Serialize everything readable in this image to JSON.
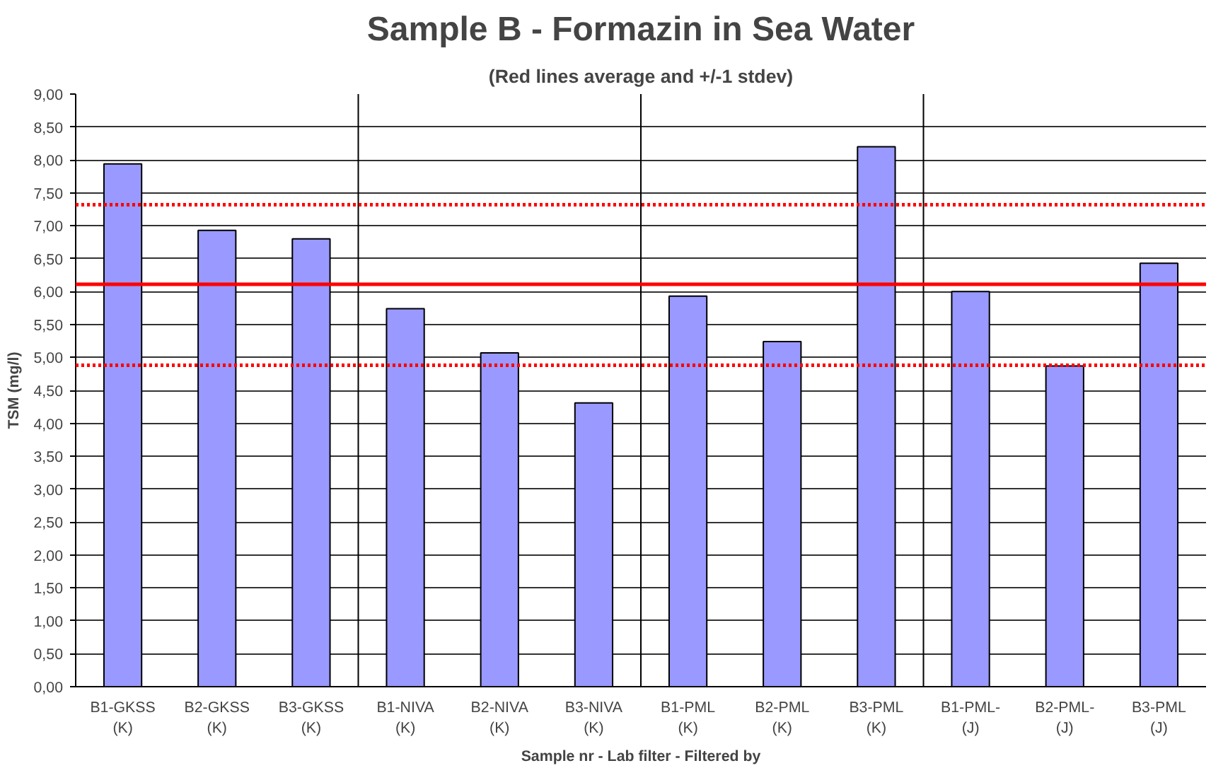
{
  "chart_data": {
    "type": "bar",
    "title": "Sample B - Formazin in Sea Water",
    "subtitle": "(Red lines average and +/-1 stdev)",
    "xlabel": "Sample nr - Lab filter - Filtered by",
    "ylabel": "TSM (mg/l)",
    "categories": [
      "B1-GKSS\n(K)",
      "B2-GKSS\n(K)",
      "B3-GKSS\n(K)",
      "B1-NIVA\n(K)",
      "B2-NIVA\n(K)",
      "B3-NIVA\n(K)",
      "B1-PML\n(K)",
      "B2-PML\n(K)",
      "B3-PML\n(K)",
      "B1-PML-\n(J)",
      "B2-PML-\n(J)",
      "B3-PML\n(J)"
    ],
    "values": [
      7.94,
      6.93,
      6.8,
      5.74,
      5.07,
      4.31,
      5.93,
      5.24,
      8.2,
      6.0,
      4.87,
      6.43
    ],
    "color": "#9999ff",
    "ylim": [
      0,
      9
    ],
    "yticks": [
      {
        "value": 0,
        "label": "0,00"
      },
      {
        "value": 0.5,
        "label": "0,50"
      },
      {
        "value": 1,
        "label": "1,00"
      },
      {
        "value": 1.5,
        "label": "1,50"
      },
      {
        "value": 2,
        "label": "2,00"
      },
      {
        "value": 2.5,
        "label": "2,50"
      },
      {
        "value": 3,
        "label": "3,00"
      },
      {
        "value": 3.5,
        "label": "3,50"
      },
      {
        "value": 4,
        "label": "4,00"
      },
      {
        "value": 4.5,
        "label": "4,50"
      },
      {
        "value": 5,
        "label": "5,00"
      },
      {
        "value": 5.5,
        "label": "5,50"
      },
      {
        "value": 6,
        "label": "6,00"
      },
      {
        "value": 6.5,
        "label": "6,50"
      },
      {
        "value": 7,
        "label": "7,00"
      },
      {
        "value": 7.5,
        "label": "7,50"
      },
      {
        "value": 8,
        "label": "8,00"
      },
      {
        "value": 8.5,
        "label": "8,50"
      },
      {
        "value": 9,
        "label": "9,00"
      }
    ],
    "grid": "y",
    "ref_lines": [
      {
        "axis": "y",
        "value": 6.11,
        "color": "#ff0000",
        "line_style": "solid"
      },
      {
        "axis": "y",
        "value": 7.32,
        "color": "#ff0000",
        "line_style": "dotted"
      },
      {
        "axis": "y",
        "value": 4.88,
        "color": "#ff0000",
        "line_style": "dotted"
      }
    ]
  }
}
